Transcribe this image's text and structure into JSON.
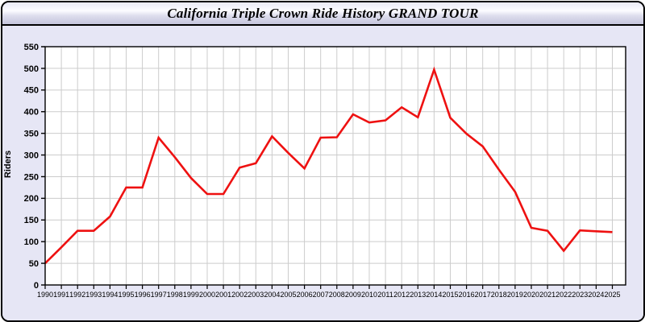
{
  "header": {
    "title": "California Triple Crown Ride History GRAND TOUR"
  },
  "chart_data": {
    "type": "line",
    "title": "California Triple Crown Ride History GRAND TOUR",
    "xlabel": "",
    "ylabel": "Riders",
    "x": [
      1990,
      1991,
      1992,
      1993,
      1994,
      1995,
      1996,
      1997,
      1998,
      1999,
      2000,
      2001,
      2002,
      2003,
      2004,
      2005,
      2006,
      2007,
      2008,
      2009,
      2010,
      2011,
      2012,
      2013,
      2014,
      2015,
      2016,
      2017,
      2018,
      2019,
      2020,
      2021,
      2022,
      2023,
      2024,
      2025
    ],
    "values": [
      50,
      87,
      125,
      125,
      158,
      225,
      225,
      340,
      295,
      247,
      210,
      210,
      271,
      281,
      343,
      305,
      269,
      340,
      341,
      394,
      375,
      380,
      410,
      387,
      497,
      386,
      349,
      320,
      266,
      215,
      132,
      125,
      79,
      126,
      124,
      122
    ],
    "ylim": [
      0,
      550
    ],
    "ytick_step": 50,
    "grid": true,
    "legend": "none",
    "line_color": "#ee1111",
    "plot_bg": "#ffffff",
    "grid_color": "#cccccc",
    "axis_color": "#000000"
  }
}
